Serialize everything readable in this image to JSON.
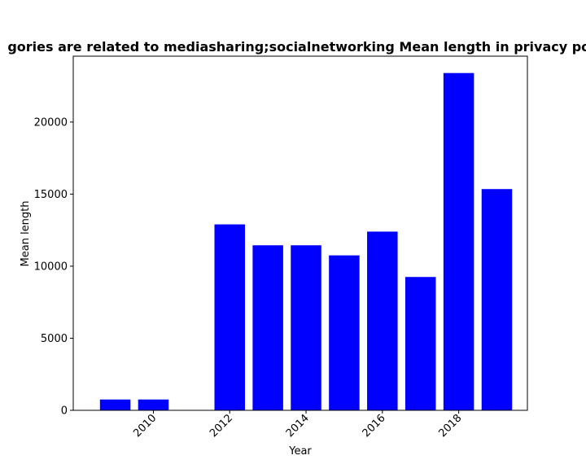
{
  "chart_data": {
    "type": "bar",
    "title": "gories are related to mediasharing;socialnetworking Mean length in privacy pol",
    "xlabel": "Year",
    "ylabel": "Mean length",
    "x": [
      2009,
      2010,
      2012,
      2013,
      2014,
      2015,
      2016,
      2017,
      2018,
      2019
    ],
    "values": [
      750,
      750,
      12900,
      11450,
      11450,
      10750,
      12400,
      9250,
      23400,
      15350
    ],
    "bar_color": "#0000ff",
    "xlim": [
      2007.9,
      2019.8
    ],
    "ylim": [
      0,
      24570
    ],
    "xticks": [
      2010,
      2012,
      2014,
      2016,
      2018
    ],
    "yticks": [
      0,
      5000,
      10000,
      15000,
      20000
    ],
    "grid": false
  }
}
